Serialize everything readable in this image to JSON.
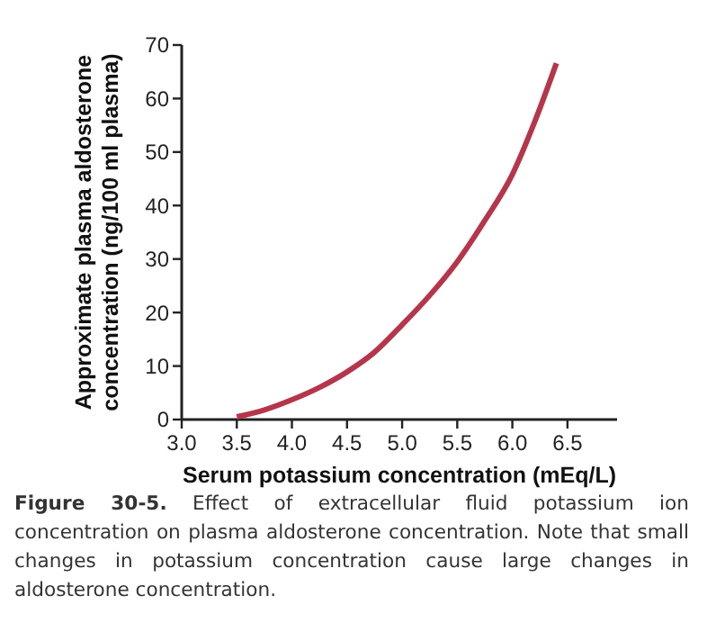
{
  "chart_data": {
    "type": "line",
    "xlabel": "Serum potassium concentration (mEq/L)",
    "ylabel": "Approximate plasma aldosterone\nconcentration (ng/100 ml plasma)",
    "x": [
      3.5,
      3.75,
      4.0,
      4.25,
      4.5,
      4.75,
      5.0,
      5.25,
      5.5,
      5.75,
      6.0,
      6.2,
      6.4
    ],
    "series": [
      {
        "color": "#b5364b",
        "values": [
          0.5,
          1.8,
          3.7,
          6.0,
          8.9,
          12.6,
          17.7,
          23.2,
          29.5,
          37.2,
          45.8,
          55.5,
          66.6
        ]
      }
    ],
    "xlim": [
      3.0,
      6.95
    ],
    "xticks": [
      {
        "value": 3.0,
        "label": "3.0"
      },
      {
        "value": 3.5,
        "label": "3.5"
      },
      {
        "value": 4.0,
        "label": "4.0"
      },
      {
        "value": 4.5,
        "label": "4.5"
      },
      {
        "value": 5.0,
        "label": "5.0"
      },
      {
        "value": 5.5,
        "label": "5.5"
      },
      {
        "value": 6.0,
        "label": "6.0"
      },
      {
        "value": 6.5,
        "label": "6.5"
      }
    ],
    "ylim": [
      0,
      70
    ],
    "yticks": [
      0,
      10,
      20,
      30,
      40,
      50,
      60,
      70
    ],
    "grid": false,
    "marker": "none",
    "line_style": "solid",
    "annotations": [
      "Figure 30-5. Effect of extracellular fluid potassium ion concentration on plasma aldosterone concentration. Note that small changes in potassium concentration cause large changes in aldosterone concentration."
    ]
  }
}
